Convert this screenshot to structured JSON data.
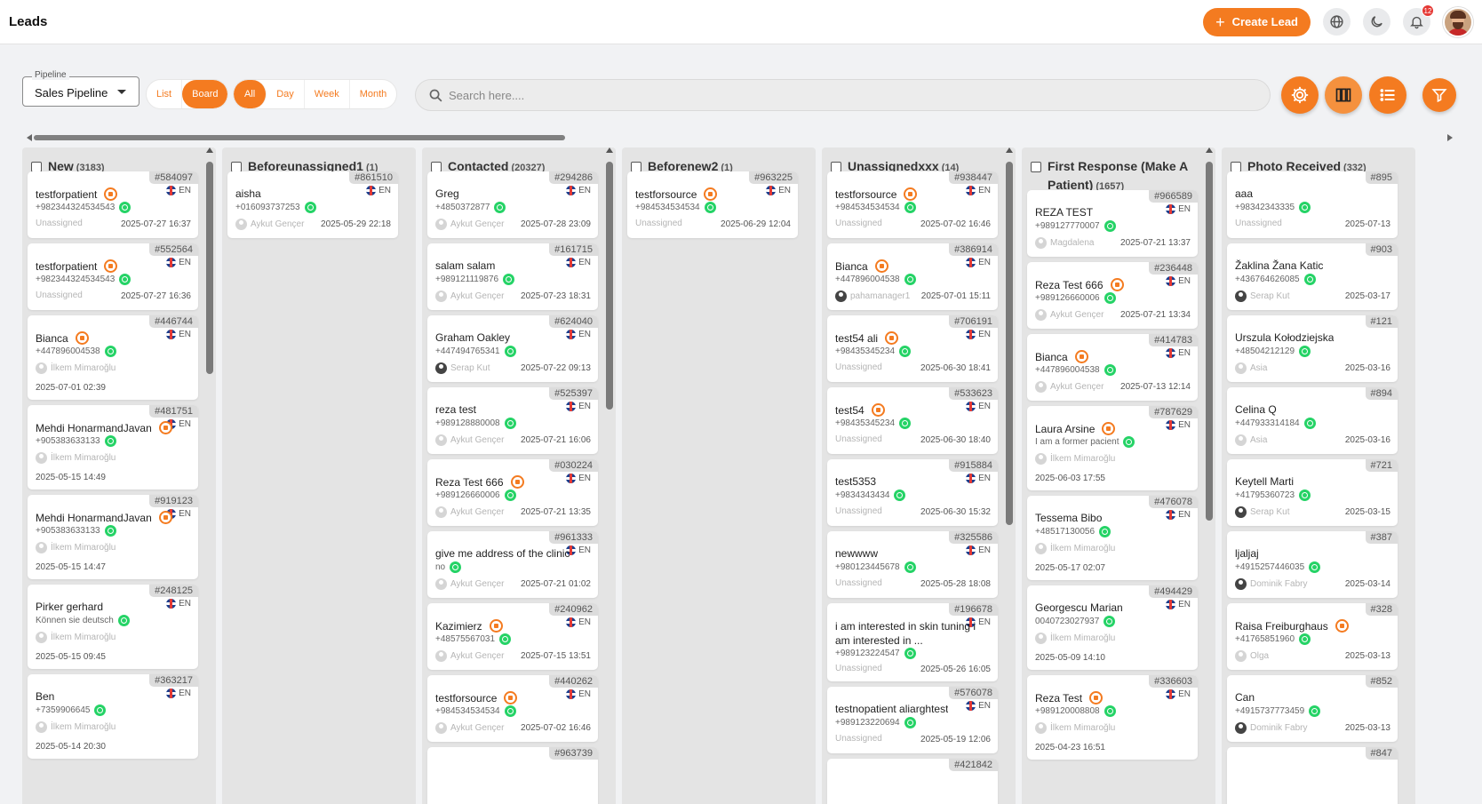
{
  "header": {
    "title": "Leads",
    "create_label": "Create Lead",
    "notification_count": "12"
  },
  "toolbar": {
    "pipeline_label": "Pipeline",
    "pipeline_value": "Sales Pipeline",
    "view_modes": [
      "List",
      "Board"
    ],
    "view_selected": "Board",
    "periods": [
      "All",
      "Day",
      "Week",
      "Month"
    ],
    "period_selected": "All",
    "search_placeholder": "Search here...."
  },
  "colors": {
    "accent": "#f47b20",
    "whatsapp": "#25d366"
  },
  "columns": [
    {
      "title": "New",
      "count": "(3183)",
      "cards": [
        {
          "id": "#584097",
          "name": "testforpatient",
          "src": true,
          "phone": "+982344324534543",
          "agent": "Unassigned",
          "date": "2025-07-27 16:37",
          "lang": "EN"
        },
        {
          "id": "#552564",
          "name": "testforpatient",
          "src": true,
          "phone": "+982344324534543",
          "agent": "Unassigned",
          "date": "2025-07-27 16:36",
          "lang": "EN"
        },
        {
          "id": "#446744",
          "name": "Bianca",
          "src": true,
          "phone": "+447896004538",
          "agent": "İlkem Mimaroğlu",
          "date": "2025-07-01 02:39",
          "lang": "EN",
          "avatar": true,
          "below": true
        },
        {
          "id": "#481751",
          "name": "Mehdi HonarmandJavan",
          "src": true,
          "phone": "+905383633133",
          "agent": "İlkem Mimaroğlu",
          "date": "2025-05-15 14:49",
          "lang": "EN",
          "avatar": true,
          "below": true
        },
        {
          "id": "#919123",
          "name": "Mehdi HonarmandJavan",
          "src": true,
          "phone": "+905383633133",
          "agent": "İlkem Mimaroğlu",
          "date": "2025-05-15 14:47",
          "lang": "EN",
          "avatar": true,
          "below": true
        },
        {
          "id": "#248125",
          "name": "Pirker gerhard",
          "src": false,
          "phone": "Können sie deutsch",
          "agent": "İlkem Mimaroğlu",
          "date": "2025-05-15 09:45",
          "lang": "EN",
          "avatar": true,
          "below": true
        },
        {
          "id": "#363217",
          "name": "Ben",
          "src": false,
          "phone": "+7359906645",
          "agent": "İlkem Mimaroğlu",
          "date": "2025-05-14 20:30",
          "lang": "EN",
          "avatar": true,
          "below": true
        }
      ]
    },
    {
      "title": "Beforeunassigned1",
      "count": "(1)",
      "cards": [
        {
          "id": "#861510",
          "name": "aisha",
          "src": false,
          "phone": "+016093737253",
          "agent": "Aykut Gençer",
          "date": "2025-05-29 22:18",
          "lang": "EN",
          "avatar": true
        }
      ]
    },
    {
      "title": "Contacted",
      "count": "(20327)",
      "cards": [
        {
          "id": "#294286",
          "name": "Greg",
          "src": false,
          "phone": "+4850372877",
          "agent": "Aykut Gençer",
          "date": "2025-07-28 23:09",
          "lang": "EN",
          "avatar": true
        },
        {
          "id": "#161715",
          "name": "salam salam",
          "src": false,
          "phone": "+989121119876",
          "agent": "Aykut Gençer",
          "date": "2025-07-23 18:31",
          "lang": "EN",
          "avatar": true
        },
        {
          "id": "#624040",
          "name": "Graham Oakley",
          "src": false,
          "phone": "+447494765341",
          "agent": "Serap Kut",
          "date": "2025-07-22 09:13",
          "lang": "EN",
          "avatar": true,
          "dark": true
        },
        {
          "id": "#525397",
          "name": "reza test",
          "src": false,
          "phone": "+989128880008",
          "agent": "Aykut Gençer",
          "date": "2025-07-21 16:06",
          "lang": "EN",
          "avatar": true
        },
        {
          "id": "#030224",
          "name": "Reza Test 666",
          "src": true,
          "phone": "+989126660006",
          "agent": "Aykut Gençer",
          "date": "2025-07-21 13:35",
          "lang": "EN",
          "avatar": true
        },
        {
          "id": "#961333",
          "name": "give me address of the clinic",
          "src": false,
          "phone": "no",
          "agent": "Aykut Gençer",
          "date": "2025-07-21 01:02",
          "lang": "EN",
          "avatar": true
        },
        {
          "id": "#240962",
          "name": "Kazimierz",
          "src": true,
          "phone": "+48575567031",
          "agent": "Aykut Gençer",
          "date": "2025-07-15 13:51",
          "lang": "EN",
          "avatar": true
        },
        {
          "id": "#440262",
          "name": "testforsource",
          "src": true,
          "phone": "+984534534534",
          "agent": "Aykut Gençer",
          "date": "2025-07-02 16:46",
          "lang": "EN",
          "avatar": true
        },
        {
          "id": "#963739",
          "name": "",
          "src": false,
          "phone": "",
          "agent": "",
          "date": "",
          "lang": ""
        }
      ]
    },
    {
      "title": "Beforenew2",
      "count": "(1)",
      "cards": [
        {
          "id": "#963225",
          "name": "testforsource",
          "src": true,
          "phone": "+984534534534",
          "agent": "Unassigned",
          "date": "2025-06-29 12:04",
          "lang": "EN"
        }
      ]
    },
    {
      "title": "Unassignedxxx",
      "count": "(14)",
      "cards": [
        {
          "id": "#938447",
          "name": "testforsource",
          "src": true,
          "phone": "+984534534534",
          "agent": "Unassigned",
          "date": "2025-07-02 16:46",
          "lang": "EN"
        },
        {
          "id": "#386914",
          "name": "Bianca",
          "src": true,
          "phone": "+447896004538",
          "agent": "pahamanager1",
          "date": "2025-07-01 15:11",
          "lang": "EN",
          "avatar": true,
          "dark": true
        },
        {
          "id": "#706191",
          "name": "test54 ali",
          "src": true,
          "phone": "+98435345234",
          "agent": "Unassigned",
          "date": "2025-06-30 18:41",
          "lang": "EN"
        },
        {
          "id": "#533623",
          "name": "test54",
          "src": true,
          "phone": "+98435345234",
          "agent": "Unassigned",
          "date": "2025-06-30 18:40",
          "lang": "EN"
        },
        {
          "id": "#915884",
          "name": "test5353",
          "src": false,
          "phone": "+9834343434",
          "agent": "Unassigned",
          "date": "2025-06-30 15:32",
          "lang": "EN"
        },
        {
          "id": "#325586",
          "name": "newwww",
          "src": false,
          "phone": "+980123445678",
          "agent": "Unassigned",
          "date": "2025-05-28 18:08",
          "lang": "EN"
        },
        {
          "id": "#196678",
          "name": "i am interested in skin tuning i am interested in ...",
          "src": false,
          "phone": "+989123224547",
          "agent": "Unassigned",
          "date": "2025-05-26 16:05",
          "lang": "EN",
          "wrap": true
        },
        {
          "id": "#576078",
          "name": "testnopatient aliarghtest",
          "src": false,
          "phone": "+989123220694",
          "agent": "Unassigned",
          "date": "2025-05-19 12:06",
          "lang": "EN"
        },
        {
          "id": "#421842",
          "name": "",
          "src": false,
          "phone": "",
          "agent": "",
          "date": "",
          "lang": ""
        }
      ]
    },
    {
      "title": "First Response (Make A Patient)",
      "count": "(1657)",
      "cards": [
        {
          "id": "#966589",
          "name": "REZA TEST",
          "src": false,
          "phone": "+989127770007",
          "agent": "Magdalena",
          "date": "2025-07-21 13:37",
          "lang": "EN",
          "avatar": true
        },
        {
          "id": "#236448",
          "name": "Reza Test 666",
          "src": true,
          "phone": "+989126660006",
          "agent": "Aykut Gençer",
          "date": "2025-07-21 13:34",
          "lang": "EN",
          "avatar": true
        },
        {
          "id": "#414783",
          "name": "Bianca",
          "src": true,
          "phone": "+447896004538",
          "agent": "Aykut Gençer",
          "date": "2025-07-13 12:14",
          "lang": "EN",
          "avatar": true
        },
        {
          "id": "#787629",
          "name": "Laura Arsine",
          "src": true,
          "phone": "I am a former pacient",
          "agent": "İlkem Mimaroğlu",
          "date": "2025-06-03 17:55",
          "lang": "EN",
          "avatar": true,
          "below": true
        },
        {
          "id": "#476078",
          "name": "Tessema Bibo",
          "src": false,
          "phone": "+48517130056",
          "agent": "İlkem Mimaroğlu",
          "date": "2025-05-17 02:07",
          "lang": "EN",
          "avatar": true,
          "below": true
        },
        {
          "id": "#494429",
          "name": "Georgescu Marian",
          "src": false,
          "phone": "0040723027937",
          "agent": "İlkem Mimaroğlu",
          "date": "2025-05-09 14:10",
          "lang": "EN",
          "avatar": true,
          "below": true
        },
        {
          "id": "#336603",
          "name": "Reza Test",
          "src": true,
          "phone": "+989120008808",
          "agent": "İlkem Mimaroğlu",
          "date": "2025-04-23 16:51",
          "lang": "EN",
          "avatar": true,
          "below": true
        }
      ]
    },
    {
      "title": "Photo Received",
      "count": "(332)",
      "cards": [
        {
          "id": "#895",
          "name": "aaa",
          "src": false,
          "phone": "+98342343335",
          "agent": "Unassigned",
          "date": "2025-07-13",
          "lang": ""
        },
        {
          "id": "#903",
          "name": "Žaklina Žana Katic",
          "src": false,
          "phone": "+436764626085",
          "agent": "Serap Kut",
          "date": "2025-03-17",
          "lang": "",
          "avatar": true,
          "dark": true
        },
        {
          "id": "#121",
          "name": "Urszula Kołodziejska",
          "src": false,
          "phone": "+48504212129",
          "agent": "Asia",
          "date": "2025-03-16",
          "lang": "",
          "avatar": true
        },
        {
          "id": "#894",
          "name": "Celina Q",
          "src": false,
          "phone": "+447933314184",
          "agent": "Asia",
          "date": "2025-03-16",
          "lang": "",
          "avatar": true
        },
        {
          "id": "#721",
          "name": "Keytell Marti",
          "src": false,
          "phone": "+41795360723",
          "agent": "Serap Kut",
          "date": "2025-03-15",
          "lang": "",
          "avatar": true,
          "dark": true
        },
        {
          "id": "#387",
          "name": "ljaljaj",
          "src": false,
          "phone": "+4915257446035",
          "agent": "Dominik Fabry",
          "date": "2025-03-14",
          "lang": "",
          "avatar": true,
          "dark": true
        },
        {
          "id": "#328",
          "name": "Raisa Freiburghaus",
          "src": true,
          "phone": "+41765851960",
          "agent": "Olga",
          "date": "2025-03-13",
          "lang": "",
          "avatar": true
        },
        {
          "id": "#852",
          "name": "Can",
          "src": false,
          "phone": "+4915737773459",
          "agent": "Dominik Fabry",
          "date": "2025-03-13",
          "lang": "",
          "avatar": true,
          "dark": true
        },
        {
          "id": "#847",
          "name": "",
          "src": false,
          "phone": "",
          "agent": "",
          "date": "",
          "lang": ""
        }
      ]
    }
  ]
}
